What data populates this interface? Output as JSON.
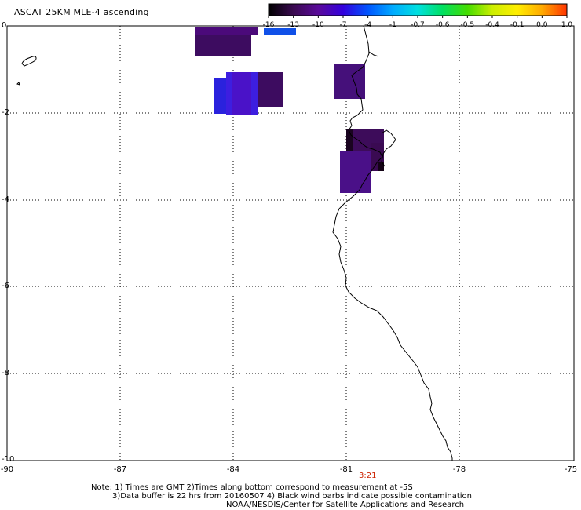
{
  "title": "ASCAT 25KM MLE-4 ascending",
  "colorbar": {
    "labels": [
      "-16",
      "-13",
      "-10",
      "-7",
      "-4",
      "-1",
      "-0.7",
      "-0.6",
      "-0.5",
      "-0.4",
      "-0.1",
      "0.0",
      "1.0"
    ],
    "colors": [
      "#000000",
      "#3a0a50",
      "#5a0a9a",
      "#3300dd",
      "#0055ff",
      "#00aaff",
      "#00e0e0",
      "#00e060",
      "#44dd00",
      "#ccee00",
      "#ffee00",
      "#ffaa00",
      "#ff3300"
    ]
  },
  "axes": {
    "y_ticks": [
      "0",
      "-2",
      "-4",
      "-6",
      "-8",
      "-10"
    ],
    "x_ticks": [
      "-90",
      "-87",
      "-84",
      "-81",
      "-78",
      "-75"
    ]
  },
  "time_label": "3:21",
  "notes": [
    "Note: 1) Times are GMT 2)Times along bottom correspond to measurement at -5S",
    "3)Data buffer is 22 hrs from 20160507 4) Black wind barbs indicate possible contamination",
    "NOAA/NESDIS/Center for Satellite Applications and Research"
  ],
  "colors": {
    "grid": "#000000",
    "coast": "#000000",
    "time": "#cc2200"
  }
}
